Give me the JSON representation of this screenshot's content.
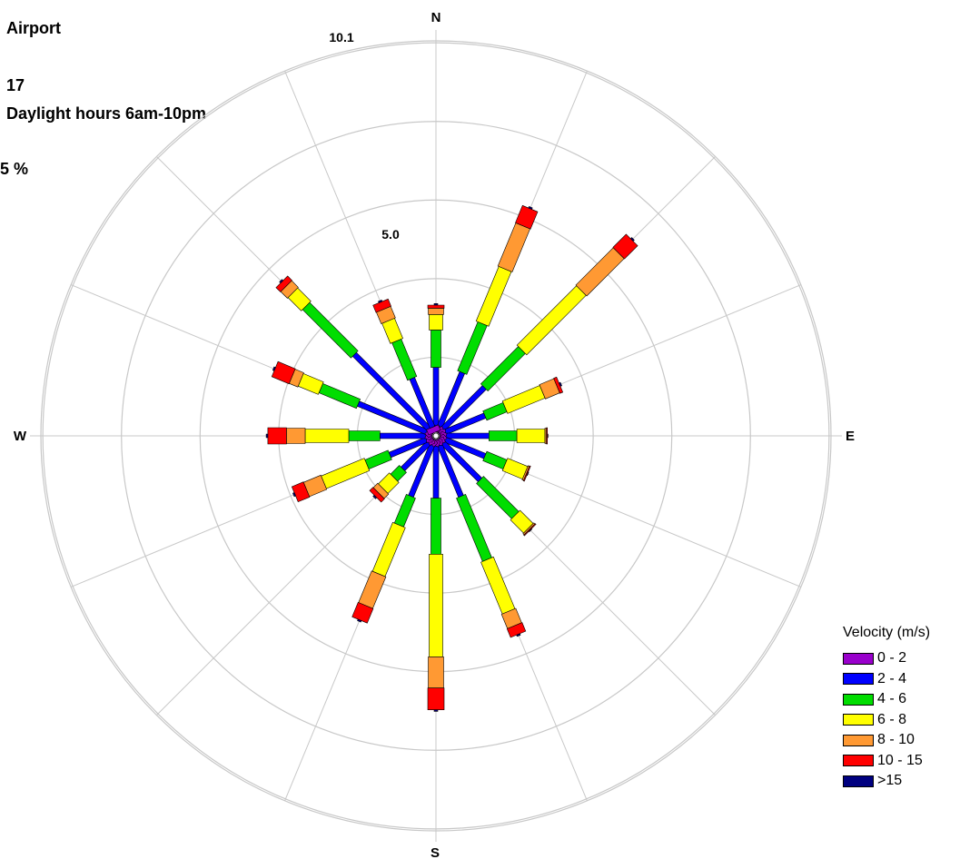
{
  "header": {
    "line1": "Airport",
    "line2": "17",
    "line3": "Daylight hours 6am-10pm",
    "line4": "5 %"
  },
  "chart_data": {
    "type": "windrose",
    "directions": [
      "N",
      "NNE",
      "NE",
      "ENE",
      "E",
      "ESE",
      "SE",
      "SSE",
      "S",
      "SSW",
      "SW",
      "WSW",
      "W",
      "WNW",
      "NW",
      "NNW"
    ],
    "compass_labels": {
      "n": "N",
      "e": "E",
      "s": "S",
      "w": "W"
    },
    "ring_labels": [
      "5.0",
      "10.1"
    ],
    "ring_values": [
      5.05,
      10.1
    ],
    "radial_max": 12.6,
    "ring_step": 2.525,
    "legend_title": "Velocity (m/s)",
    "bins": [
      {
        "label": "0 - 2",
        "color": "#9900cc"
      },
      {
        "label": "2 - 4",
        "color": "#0000ff"
      },
      {
        "label": "4 - 6",
        "color": "#00dd00"
      },
      {
        "label": "6 - 8",
        "color": "#ffff00"
      },
      {
        "label": "8 - 10",
        "color": "#ff9933"
      },
      {
        "label": "10 - 15",
        "color": "#ff0000"
      },
      {
        "label": ">15",
        "color": "#000080"
      }
    ],
    "series": [
      {
        "direction": "N",
        "cumulative": [
          0.3,
          2.2,
          3.4,
          3.9,
          4.1,
          4.2,
          4.25
        ]
      },
      {
        "direction": "NNE",
        "cumulative": [
          0.3,
          2.2,
          3.9,
          5.8,
          7.3,
          7.9,
          7.95
        ]
      },
      {
        "direction": "NE",
        "cumulative": [
          0.3,
          2.2,
          3.9,
          6.6,
          8.3,
          8.9,
          8.95
        ]
      },
      {
        "direction": "ENE",
        "cumulative": [
          0.3,
          1.7,
          2.4,
          3.7,
          4.2,
          4.3,
          4.35
        ]
      },
      {
        "direction": "E",
        "cumulative": [
          0.3,
          1.7,
          2.6,
          3.5,
          3.55,
          3.58,
          3.6
        ]
      },
      {
        "direction": "ESE",
        "cumulative": [
          0.3,
          1.7,
          2.4,
          3.1,
          3.15,
          3.18,
          3.2
        ]
      },
      {
        "direction": "SE",
        "cumulative": [
          0.3,
          2.0,
          3.6,
          4.2,
          4.25,
          4.28,
          4.3
        ]
      },
      {
        "direction": "SSE",
        "cumulative": [
          0.3,
          2.1,
          4.3,
          6.1,
          6.6,
          6.9,
          6.95
        ]
      },
      {
        "direction": "S",
        "cumulative": [
          0.3,
          2.0,
          3.8,
          7.1,
          8.1,
          8.8,
          8.85
        ]
      },
      {
        "direction": "SSW",
        "cumulative": [
          0.3,
          2.1,
          3.1,
          4.8,
          5.9,
          6.4,
          6.45
        ]
      },
      {
        "direction": "SW",
        "cumulative": [
          0.3,
          1.5,
          1.9,
          2.4,
          2.6,
          2.75,
          2.8
        ]
      },
      {
        "direction": "WSW",
        "cumulative": [
          0.3,
          1.6,
          2.4,
          3.9,
          4.5,
          4.9,
          4.95
        ]
      },
      {
        "direction": "W",
        "cumulative": [
          0.3,
          1.8,
          2.8,
          4.2,
          4.8,
          5.4,
          5.45
        ]
      },
      {
        "direction": "WNW",
        "cumulative": [
          0.3,
          2.7,
          4.0,
          4.7,
          5.0,
          5.6,
          5.65
        ]
      },
      {
        "direction": "NW",
        "cumulative": [
          0.3,
          3.7,
          5.9,
          6.5,
          6.8,
          7.0,
          7.05
        ]
      },
      {
        "direction": "NNW",
        "cumulative": [
          0.3,
          2.0,
          3.3,
          4.0,
          4.4,
          4.65,
          4.7
        ]
      }
    ]
  }
}
